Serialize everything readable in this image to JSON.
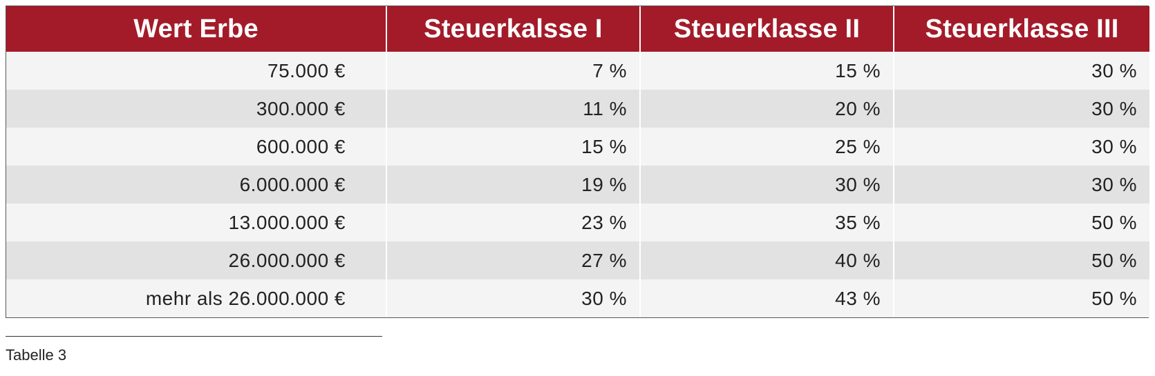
{
  "table": {
    "headers": [
      "Wert Erbe",
      "Steuerkalsse I",
      "Steuerklasse II",
      "Steuerklasse III"
    ],
    "rows": [
      [
        "75.000 €",
        "7 %",
        "15 %",
        "30 %"
      ],
      [
        "300.000 €",
        "11 %",
        "20 %",
        "30 %"
      ],
      [
        "600.000 €",
        "15 %",
        "25 %",
        "30 %"
      ],
      [
        "6.000.000 €",
        "19 %",
        "30 %",
        "30 %"
      ],
      [
        "13.000.000 €",
        "23 %",
        "35 %",
        "50 %"
      ],
      [
        "26.000.000 €",
        "27 %",
        "40 %",
        "50 %"
      ],
      [
        "mehr als 26.000.000 €",
        "30 %",
        "43 %",
        "50 %"
      ]
    ]
  },
  "caption": "Tabelle 3",
  "colors": {
    "header_bg": "#a31b29",
    "header_text": "#ffffff",
    "row_light": "#f4f4f4",
    "row_dark": "#e2e2e2"
  }
}
